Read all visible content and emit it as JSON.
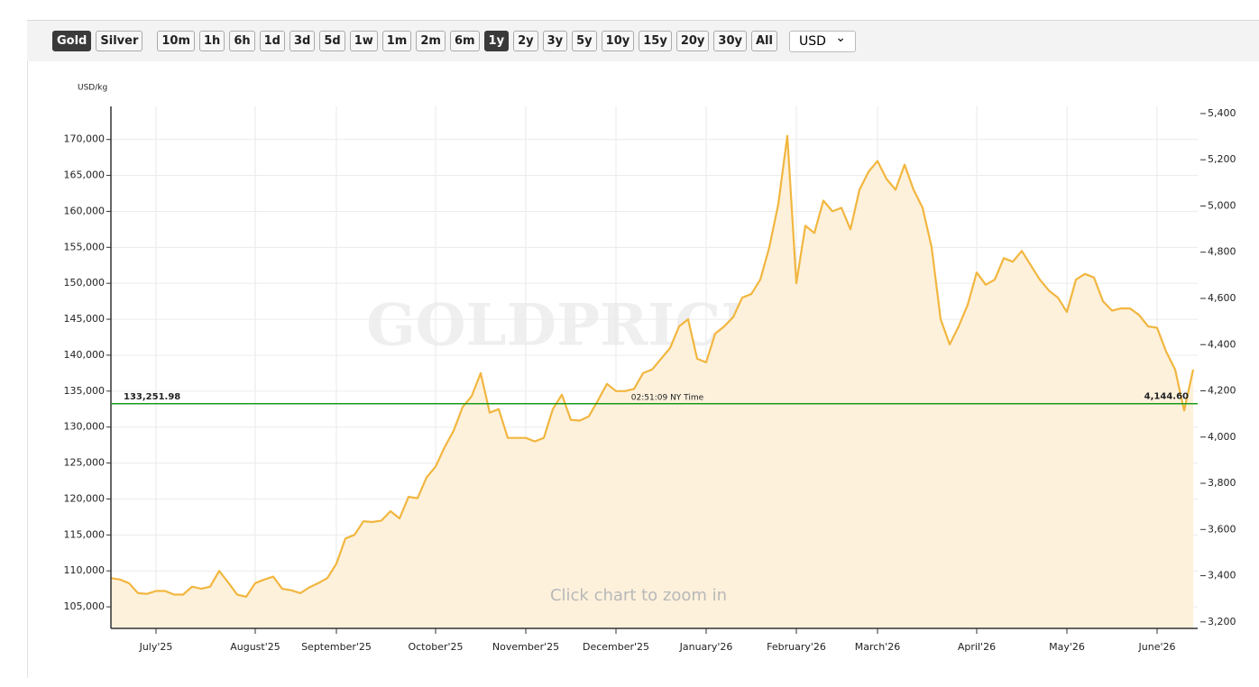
{
  "toolbar": {
    "metals": [
      "Gold",
      "Silver"
    ],
    "active_metal": "Gold",
    "ranges": [
      "10m",
      "1h",
      "6h",
      "1d",
      "3d",
      "5d",
      "1w",
      "1m",
      "2m",
      "6m",
      "1y",
      "2y",
      "3y",
      "5y",
      "10y",
      "15y",
      "20y",
      "30y",
      "All"
    ],
    "active_range": "1y",
    "currency": "USD"
  },
  "chart_data": {
    "type": "area",
    "y_label": "USD/kg",
    "watermark": "GOLDPRICE.ORG",
    "hint": "Click chart to zoom in",
    "categories": [
      null,
      null,
      null,
      null,
      null,
      "July'25",
      null,
      null,
      null,
      null,
      null,
      null,
      null,
      null,
      null,
      null,
      "August'25",
      null,
      null,
      null,
      null,
      null,
      null,
      null,
      null,
      "September'25",
      null,
      null,
      null,
      null,
      null,
      null,
      null,
      null,
      null,
      null,
      "October'25",
      null,
      null,
      null,
      null,
      null,
      null,
      null,
      null,
      null,
      "November'25",
      null,
      null,
      null,
      null,
      null,
      null,
      null,
      null,
      null,
      "December'25",
      null,
      null,
      null,
      null,
      null,
      null,
      null,
      null,
      null,
      "January'26",
      null,
      null,
      null,
      null,
      null,
      null,
      null,
      null,
      null,
      "February'26",
      null,
      null,
      null,
      null,
      null,
      null,
      null,
      null,
      "March'26",
      null,
      null,
      null,
      null,
      null,
      null,
      null,
      null,
      null,
      null,
      "April'26",
      null,
      null,
      null,
      null,
      null,
      null,
      null,
      null,
      null,
      "May'26",
      null,
      null,
      null,
      null,
      null,
      null,
      null,
      null,
      null,
      "June'26",
      null,
      null,
      null,
      null
    ],
    "series": [
      {
        "name": "Gold",
        "color": "#f2b63f",
        "fill": "#fdf1dc",
        "values": [
          109000,
          108800,
          108300,
          106900,
          106800,
          107200,
          107200,
          106700,
          106700,
          107800,
          107500,
          107800,
          110000,
          108400,
          106700,
          106400,
          108300,
          108800,
          109200,
          107500,
          107300,
          106900,
          107700,
          108300,
          109000,
          111000,
          114500,
          115000,
          116900,
          116800,
          117000,
          118300,
          117300,
          120300,
          120100,
          123000,
          124500,
          127200,
          129500,
          132800,
          134300,
          137500,
          132000,
          132500,
          128500,
          128500,
          128500,
          128000,
          128500,
          132500,
          134500,
          131000,
          130900,
          131500,
          133700,
          136000,
          135000,
          135000,
          135300,
          137500,
          138000,
          139500,
          141000,
          144000,
          145000,
          139500,
          139000,
          143000,
          144000,
          145300,
          148000,
          148500,
          150500,
          155000,
          161000,
          170500,
          150000,
          158000,
          157000,
          161500,
          160000,
          160500,
          157500,
          163000,
          165500,
          167000,
          164500,
          163000,
          166500,
          163000,
          160500,
          155000,
          145000,
          141500,
          144000,
          147000,
          151500,
          149800,
          150500,
          153500,
          153000,
          154500,
          152500,
          150500,
          149000,
          148000,
          146000,
          150500,
          151300,
          150800,
          147500,
          146200,
          146500,
          146500,
          145600,
          144000,
          143800,
          140500,
          138000,
          132300,
          138000
        ]
      }
    ],
    "ylim": [
      102000,
      174600
    ],
    "yticks": [
      {
        "value": 105000,
        "label": "105,000"
      },
      {
        "value": 110000,
        "label": "110,000"
      },
      {
        "value": 115000,
        "label": "115,000"
      },
      {
        "value": 120000,
        "label": "120,000"
      },
      {
        "value": 125000,
        "label": "125,000"
      },
      {
        "value": 130000,
        "label": "130,000"
      },
      {
        "value": 135000,
        "label": "135,000"
      },
      {
        "value": 140000,
        "label": "140,000"
      },
      {
        "value": 145000,
        "label": "145,000"
      },
      {
        "value": 150000,
        "label": "150,000"
      },
      {
        "value": 155000,
        "label": "155,000"
      },
      {
        "value": 160000,
        "label": "160,000"
      },
      {
        "value": 165000,
        "label": "165,000"
      },
      {
        "value": 170000,
        "label": "170,000"
      }
    ],
    "y2lim": [
      3172,
      5431
    ],
    "y2ticks": [
      {
        "value": 3200,
        "label": "3,200"
      },
      {
        "value": 3400,
        "label": "3,400"
      },
      {
        "value": 3600,
        "label": "3,600"
      },
      {
        "value": 3800,
        "label": "3,800"
      },
      {
        "value": 4000,
        "label": "4,000"
      },
      {
        "value": 4200,
        "label": "4,200"
      },
      {
        "value": 4400,
        "label": "4,400"
      },
      {
        "value": 4600,
        "label": "4,600"
      },
      {
        "value": 4800,
        "label": "4,800"
      },
      {
        "value": 5000,
        "label": "5,000"
      },
      {
        "value": 5200,
        "label": "5,200"
      },
      {
        "value": 5400,
        "label": "5,400"
      }
    ],
    "reference": {
      "left": {
        "value": 133251.98,
        "label": "133,251.98"
      },
      "right": {
        "value": 4144.6,
        "label": "4,144.60"
      },
      "time": "02:51:09 NY Time",
      "color": "#1a9a1a"
    },
    "grid": true
  }
}
